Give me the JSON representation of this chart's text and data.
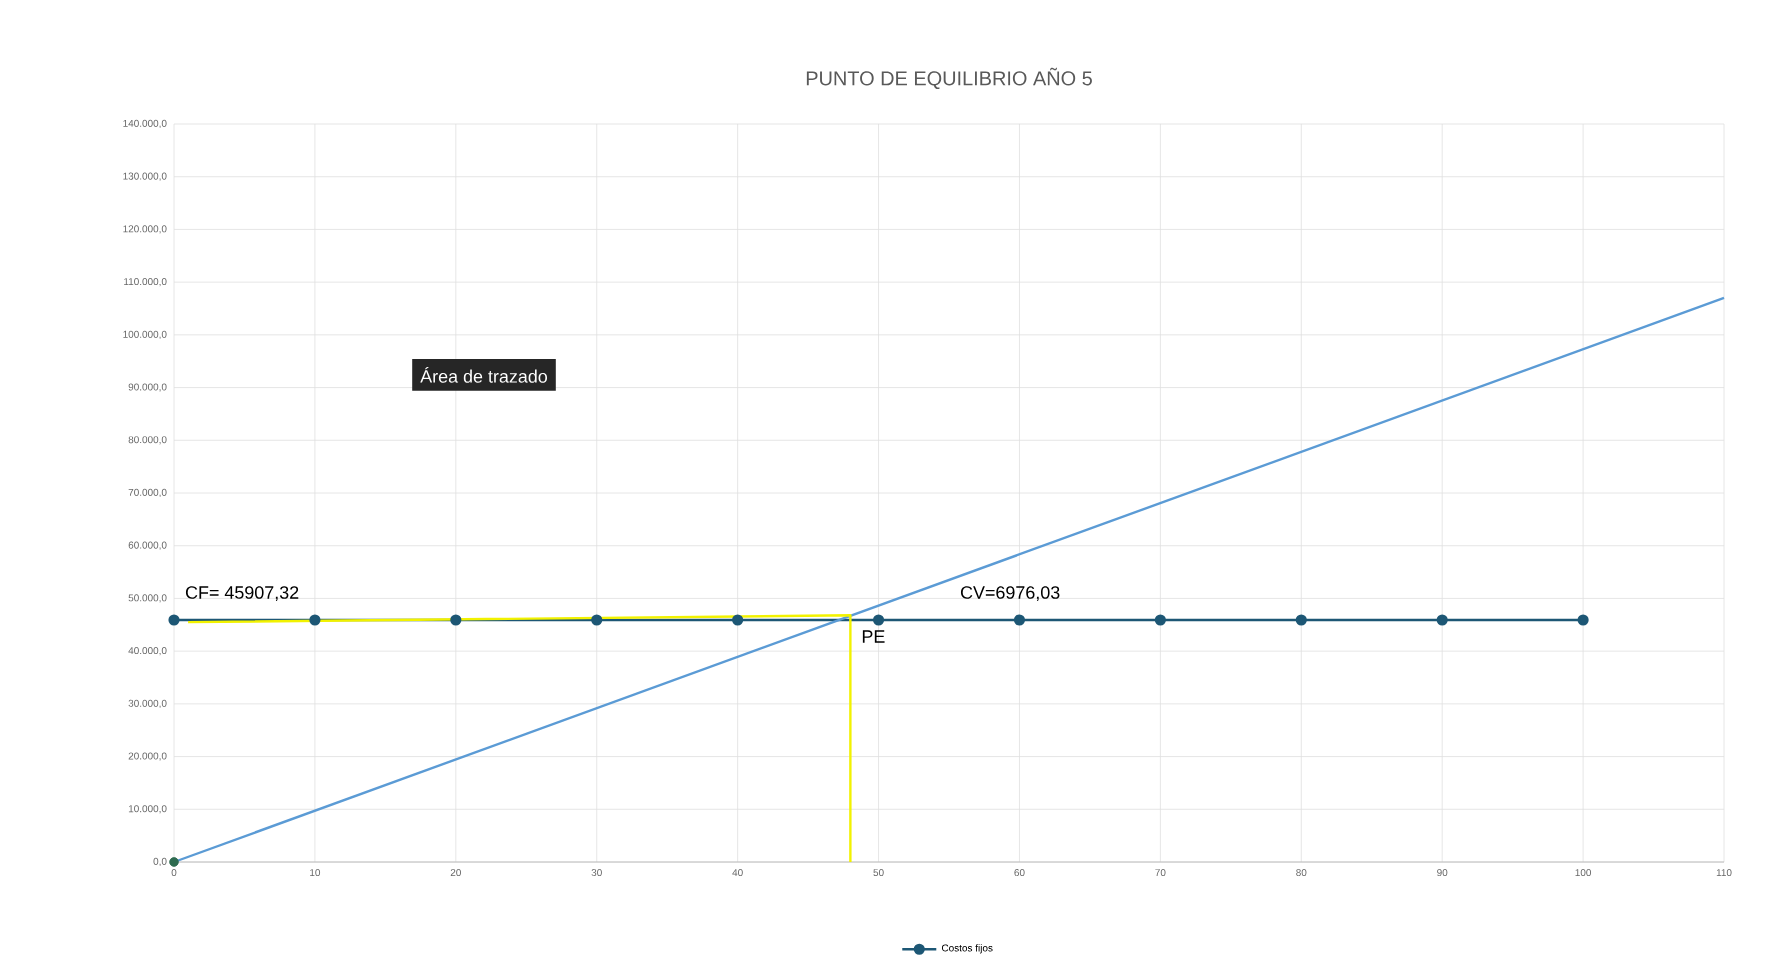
{
  "chart_data": {
    "type": "line",
    "title": "PUNTO DE EQUILIBRIO AÑO 5",
    "xlim": [
      0,
      110
    ],
    "xticks": [
      0,
      10,
      20,
      30,
      40,
      50,
      60,
      70,
      80,
      90,
      100,
      110
    ],
    "ylim": [
      0,
      140000
    ],
    "yticks": [
      {
        "value": 0,
        "label": "0,0"
      },
      {
        "value": 10000,
        "label": "10.000,0"
      },
      {
        "value": 20000,
        "label": "20.000,0"
      },
      {
        "value": 30000,
        "label": "30.000,0"
      },
      {
        "value": 40000,
        "label": "40.000,0"
      },
      {
        "value": 50000,
        "label": "50.000,0"
      },
      {
        "value": 60000,
        "label": "60.000,0"
      },
      {
        "value": 70000,
        "label": "70.000,0"
      },
      {
        "value": 80000,
        "label": "80.000,0"
      },
      {
        "value": 90000,
        "label": "90.000,0"
      },
      {
        "value": 100000,
        "label": "100.000,0"
      },
      {
        "value": 110000,
        "label": "110.000,0"
      },
      {
        "value": 120000,
        "label": "120.000,0"
      },
      {
        "value": 130000,
        "label": "130.000,0"
      },
      {
        "value": 140000,
        "label": "140.000,0"
      }
    ],
    "grid": true,
    "legend": "bottom",
    "series": [
      {
        "name": "Costos fijos",
        "color": "#1d5775",
        "marker": "circle",
        "x": [
          0,
          10,
          20,
          30,
          40,
          50,
          60,
          70,
          80,
          90,
          100
        ],
        "values": [
          45907.32,
          45907.32,
          45907.32,
          45907.32,
          45907.32,
          45907.32,
          45907.32,
          45907.32,
          45907.32,
          45907.32,
          45907.32
        ]
      },
      {
        "color": "#5b9bd5",
        "marker": "none",
        "x": [
          0,
          110
        ],
        "values": [
          0,
          107000
        ]
      },
      {
        "color": "#f2f200",
        "marker": "none",
        "x": [
          1,
          48,
          48
        ],
        "values": [
          45500,
          46800,
          0
        ]
      },
      {
        "type": "scatter",
        "color": "#2e6b50",
        "marker": "circle",
        "x": [
          0
        ],
        "values": [
          0
        ]
      }
    ],
    "annotations": [
      {
        "text": "CF= 45907,32",
        "x": 0,
        "y": 45907.32
      },
      {
        "text": "CV=6976,03",
        "x": 55,
        "y": 45907.32
      },
      {
        "text": "PE",
        "x": 48,
        "y": 46800
      },
      "Área de trazado"
    ]
  }
}
